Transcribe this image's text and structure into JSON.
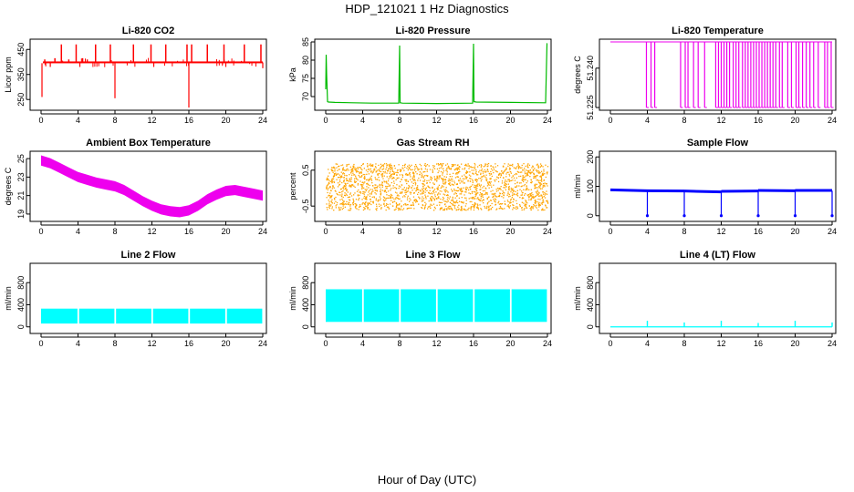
{
  "title": "HDP_121021  1 Hz Diagnostics",
  "xlabel": "Hour of Day (UTC)",
  "chart_data": [
    {
      "type": "line",
      "title": "Li-820 CO2",
      "ylabel": "Licor ppm",
      "color": "#ff0000",
      "xlim": [
        0,
        24
      ],
      "ylim": [
        218,
        480
      ],
      "xticks": [
        0,
        4,
        8,
        12,
        16,
        20,
        24
      ],
      "yticks": [
        250,
        350,
        450
      ],
      "band": {
        "low": 395,
        "high": 402
      },
      "baseline_events": [
        {
          "x": 0.1,
          "y": 260
        },
        {
          "x": 0.25,
          "y": 395
        }
      ],
      "spikes": [
        {
          "x": 0.4,
          "y": 410
        },
        {
          "x": 1.5,
          "y": 415
        },
        {
          "x": 2.2,
          "y": 470
        },
        {
          "x": 3.0,
          "y": 410
        },
        {
          "x": 3.8,
          "y": 470
        },
        {
          "x": 4.5,
          "y": 415
        },
        {
          "x": 5.0,
          "y": 410
        },
        {
          "x": 5.9,
          "y": 470
        },
        {
          "x": 7.5,
          "y": 470
        },
        {
          "x": 10.0,
          "y": 470
        },
        {
          "x": 11.9,
          "y": 470
        },
        {
          "x": 13.5,
          "y": 470
        },
        {
          "x": 15.8,
          "y": 470
        },
        {
          "x": 16.3,
          "y": 470
        },
        {
          "x": 18.0,
          "y": 470
        },
        {
          "x": 19.8,
          "y": 470
        },
        {
          "x": 22.0,
          "y": 470
        },
        {
          "x": 23.8,
          "y": 470
        }
      ],
      "dips": [
        {
          "x": 1.0,
          "y": 380
        },
        {
          "x": 4.2,
          "y": 380
        },
        {
          "x": 8.0,
          "y": 255
        },
        {
          "x": 12.2,
          "y": 380
        },
        {
          "x": 16.0,
          "y": 218
        },
        {
          "x": 20.0,
          "y": 380
        },
        {
          "x": 24.0,
          "y": 375
        }
      ]
    },
    {
      "type": "line",
      "title": "Li-820 Pressure",
      "ylabel": "kPa",
      "color": "#00bb00",
      "xlim": [
        0,
        24
      ],
      "ylim": [
        67,
        85
      ],
      "xticks": [
        0,
        4,
        8,
        12,
        16,
        20,
        24
      ],
      "yticks": [
        70,
        75,
        80,
        85
      ],
      "x": [
        0,
        0.05,
        0.1,
        0.2,
        0.3,
        1,
        3,
        5,
        7.9,
        8.0,
        8.05,
        8.3,
        12,
        15.9,
        16.0,
        16.05,
        16.3,
        20,
        23.8,
        23.95,
        24.0
      ],
      "y": [
        72,
        81.5,
        76,
        68.6,
        68.5,
        68.4,
        68.3,
        68.2,
        68.2,
        84,
        68.3,
        68.2,
        68.1,
        68.2,
        84.5,
        68.6,
        68.5,
        68.4,
        68.3,
        84.5,
        84.5
      ]
    },
    {
      "type": "line",
      "title": "Li-820 Temperature",
      "ylabel": "degrees C",
      "color": "#ee00ee",
      "xlim": [
        0,
        24
      ],
      "ylim": [
        51.225,
        51.25
      ],
      "yticks": [
        51.225,
        51.24
      ],
      "ytick_labels": [
        "51.225",
        "51.240"
      ],
      "xticks": [
        0,
        4,
        8,
        12,
        16,
        20,
        24
      ],
      "high": 51.25,
      "low": 51.225,
      "drop_times": [
        3.9,
        4.4,
        4.8,
        7.6,
        8.1,
        8.4,
        9.0,
        9.5,
        10.2,
        11.4,
        11.7,
        12.0,
        12.3,
        12.6,
        12.9,
        13.3,
        13.6,
        13.9,
        14.3,
        14.6,
        14.9,
        15.2,
        15.5,
        15.8,
        16.1,
        16.4,
        16.7,
        17.0,
        17.3,
        17.6,
        17.9,
        18.3,
        18.6,
        19.2,
        19.6,
        20.1,
        20.4,
        20.8,
        21.2,
        21.6,
        22.0,
        22.5,
        23.2,
        23.5,
        23.9
      ]
    },
    {
      "type": "line",
      "title": "Ambient Box Temperature",
      "ylabel": "degrees C",
      "color": "#ee00ee",
      "xlim": [
        0,
        24
      ],
      "ylim": [
        18.5,
        25.5
      ],
      "xticks": [
        0,
        4,
        8,
        12,
        16,
        20,
        24
      ],
      "yticks": [
        19,
        21,
        23,
        25
      ],
      "x": [
        0,
        1,
        2,
        3,
        4,
        5,
        6,
        7,
        8,
        9,
        10,
        11,
        12,
        13,
        14,
        15,
        16,
        17,
        18,
        19,
        20,
        21,
        22,
        23,
        24
      ],
      "y": [
        24.8,
        24.5,
        24.0,
        23.5,
        23.0,
        22.7,
        22.4,
        22.2,
        22.0,
        21.6,
        21.0,
        20.4,
        19.9,
        19.5,
        19.3,
        19.2,
        19.4,
        19.9,
        20.6,
        21.1,
        21.5,
        21.6,
        21.4,
        21.2,
        21.0
      ],
      "band_width": 0.55
    },
    {
      "type": "scatter",
      "title": "Gas Stream RH",
      "ylabel": "percent",
      "color": "#ffa500",
      "xlim": [
        0,
        24
      ],
      "ylim": [
        -0.85,
        0.95
      ],
      "xticks": [
        0,
        4,
        8,
        12,
        16,
        20,
        24
      ],
      "yticks": [
        -0.5,
        0.5
      ],
      "ytick_labels": [
        "-0.5",
        "0.5"
      ],
      "range": [
        -0.6,
        0.7
      ]
    },
    {
      "type": "line",
      "title": "Sample Flow",
      "ylabel": "ml/min",
      "color": "#0000ff",
      "xlim": [
        0,
        24
      ],
      "ylim": [
        -10,
        210
      ],
      "xticks": [
        0,
        4,
        8,
        12,
        16,
        20,
        24
      ],
      "yticks": [
        0,
        100,
        200
      ],
      "segments": [
        {
          "x": [
            0,
            4
          ],
          "y": [
            88,
            85
          ]
        },
        {
          "x": [
            4,
            8
          ],
          "y": [
            85,
            84
          ]
        },
        {
          "x": [
            8,
            12
          ],
          "y": [
            84,
            81
          ]
        },
        {
          "x": [
            12,
            16
          ],
          "y": [
            83,
            84
          ]
        },
        {
          "x": [
            16,
            20
          ],
          "y": [
            86,
            85
          ]
        },
        {
          "x": [
            20,
            24
          ],
          "y": [
            86,
            86
          ]
        }
      ],
      "dips": [
        {
          "x": 4,
          "y": 0
        },
        {
          "x": 8,
          "y": 0
        },
        {
          "x": 12,
          "y": 0
        },
        {
          "x": 16,
          "y": 0
        },
        {
          "x": 20,
          "y": 0
        },
        {
          "x": 24,
          "y": 0
        }
      ]
    },
    {
      "type": "area",
      "title": "Line 2 Flow",
      "ylabel": "ml/min",
      "color": "#00ffff",
      "xlim": [
        0,
        24
      ],
      "ylim": [
        -70,
        1100
      ],
      "xticks": [
        0,
        4,
        8,
        12,
        16,
        20,
        24
      ],
      "yticks": [
        0,
        400,
        800
      ],
      "band": {
        "low": 60,
        "high": 330
      },
      "gaps": [
        4,
        8,
        12,
        16,
        20
      ]
    },
    {
      "type": "area",
      "title": "Line 3 Flow",
      "ylabel": "ml/min",
      "color": "#00ffff",
      "xlim": [
        0,
        24
      ],
      "ylim": [
        -70,
        1100
      ],
      "xticks": [
        0,
        4,
        8,
        12,
        16,
        20,
        24
      ],
      "yticks": [
        0,
        400,
        800
      ],
      "band": {
        "low": 90,
        "high": 680
      },
      "gaps": [
        4,
        8,
        12,
        16,
        20
      ]
    },
    {
      "type": "line",
      "title": "Line 4 (LT) Flow",
      "ylabel": "ml/min",
      "color": "#00ffff",
      "xlim": [
        0,
        24
      ],
      "ylim": [
        -70,
        1100
      ],
      "xticks": [
        0,
        4,
        8,
        12,
        16,
        20,
        24
      ],
      "yticks": [
        0,
        400,
        800
      ],
      "baseline": 0,
      "spikes": [
        {
          "x": 4,
          "y": 110
        },
        {
          "x": 8,
          "y": 80
        },
        {
          "x": 12,
          "y": 110
        },
        {
          "x": 16,
          "y": 70
        },
        {
          "x": 20,
          "y": 110
        },
        {
          "x": 24,
          "y": 80
        }
      ]
    }
  ]
}
